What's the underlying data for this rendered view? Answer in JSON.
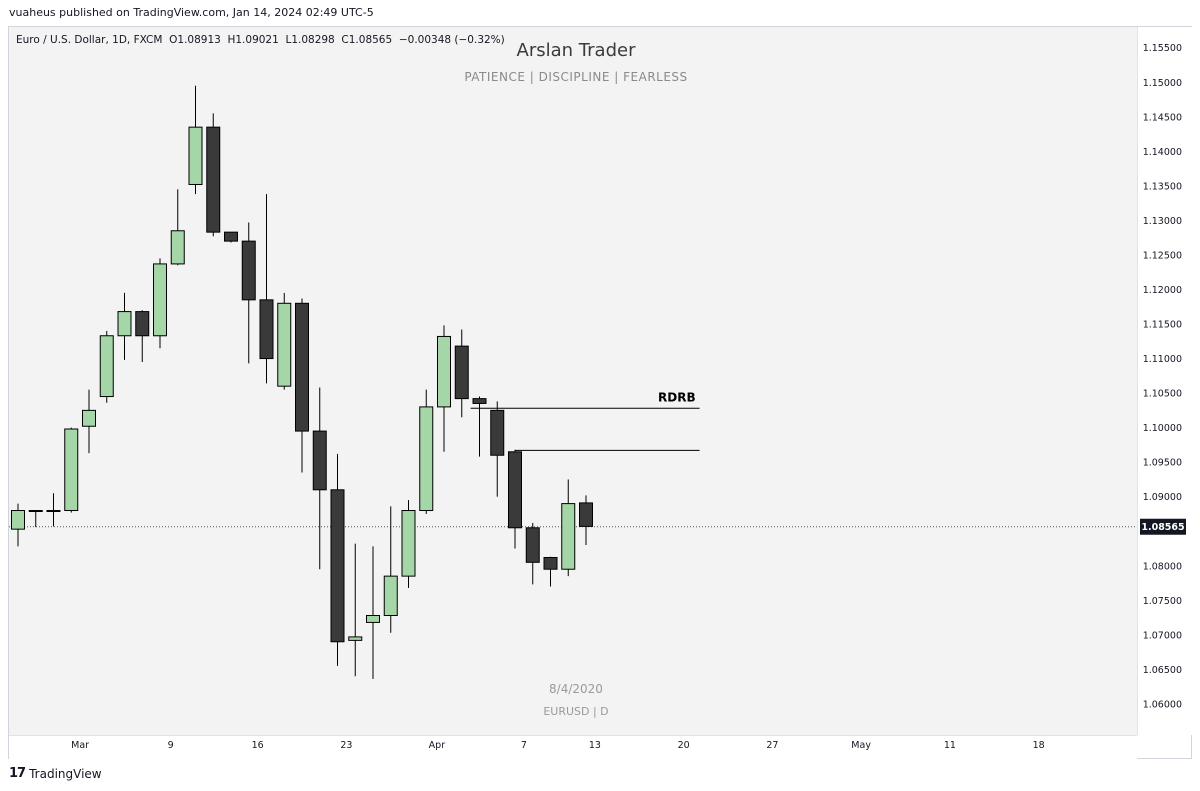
{
  "publisher_line": "vuaheus published on TradingView.com, Jan 14, 2024 02:49 UTC-5",
  "legend": "Euro / U.S. Dollar, 1D, FXCM  O1.08913  H1.09021  L1.08298  C1.08565  −0.00348 (−0.32%)",
  "watermark": {
    "title": "Arslan Trader",
    "subtitle": "PATIENCE   |   DISCIPLINE   |   FEARLESS",
    "date": "8/4/2020",
    "symbol": "EURUSD  |  D"
  },
  "footer": {
    "logo": "17",
    "brand": "TradingView"
  },
  "colors": {
    "up": "#a5d6a7",
    "down": "#3a3a3a",
    "wick": "#000000",
    "line": "#000000",
    "price_line": "#555555"
  },
  "chart_data": {
    "type": "candlestick",
    "symbol": "EURUSD",
    "interval": "1D",
    "ylim": [
      1.0555,
      1.158
    ],
    "y_ticks": [
      "1.15500",
      "1.15000",
      "1.14500",
      "1.14000",
      "1.13500",
      "1.13000",
      "1.12500",
      "1.12000",
      "1.11500",
      "1.11000",
      "1.10500",
      "1.10000",
      "1.09500",
      "1.09000",
      "1.08500",
      "1.08000",
      "1.07500",
      "1.07000",
      "1.06500",
      "1.06000"
    ],
    "x_ticks": [
      {
        "label": "Mar",
        "index": 3.5
      },
      {
        "label": "9",
        "index": 8.6
      },
      {
        "label": "16",
        "index": 13.5
      },
      {
        "label": "23",
        "index": 18.5
      },
      {
        "label": "Apr",
        "index": 23.6
      },
      {
        "label": "7",
        "index": 28.5
      },
      {
        "label": "13",
        "index": 32.5
      },
      {
        "label": "20",
        "index": 37.5
      },
      {
        "label": "27",
        "index": 42.5
      },
      {
        "label": "May",
        "index": 47.5
      },
      {
        "label": "11",
        "index": 52.5
      },
      {
        "label": "18",
        "index": 57.5
      }
    ],
    "candles": [
      {
        "o": 1.0853,
        "h": 1.089,
        "l": 1.0828,
        "c": 1.088
      },
      {
        "o": 1.088,
        "h": 1.0878,
        "l": 1.0856,
        "c": 1.088
      },
      {
        "o": 1.088,
        "h": 1.0905,
        "l": 1.0857,
        "c": 1.088
      },
      {
        "o": 1.088,
        "h": 1.1,
        "l": 1.0877,
        "c": 1.0998
      },
      {
        "o": 1.1002,
        "h": 1.1055,
        "l": 1.0963,
        "c": 1.1025
      },
      {
        "o": 1.1045,
        "h": 1.114,
        "l": 1.1036,
        "c": 1.1133
      },
      {
        "o": 1.1133,
        "h": 1.1195,
        "l": 1.1098,
        "c": 1.1168
      },
      {
        "o": 1.1168,
        "h": 1.117,
        "l": 1.1095,
        "c": 1.1133
      },
      {
        "o": 1.1133,
        "h": 1.1245,
        "l": 1.1115,
        "c": 1.1237
      },
      {
        "o": 1.1237,
        "h": 1.1345,
        "l": 1.1235,
        "c": 1.1285
      },
      {
        "o": 1.1352,
        "h": 1.1495,
        "l": 1.1338,
        "c": 1.1435
      },
      {
        "o": 1.1435,
        "h": 1.1455,
        "l": 1.1277,
        "c": 1.1283
      },
      {
        "o": 1.1283,
        "h": 1.1282,
        "l": 1.1268,
        "c": 1.127
      },
      {
        "o": 1.127,
        "h": 1.1297,
        "l": 1.1093,
        "c": 1.1185
      },
      {
        "o": 1.1185,
        "h": 1.1338,
        "l": 1.1064,
        "c": 1.11
      },
      {
        "o": 1.106,
        "h": 1.1195,
        "l": 1.1055,
        "c": 1.118
      },
      {
        "o": 1.118,
        "h": 1.1187,
        "l": 1.0935,
        "c": 1.0995
      },
      {
        "o": 1.0995,
        "h": 1.1058,
        "l": 1.0795,
        "c": 1.091
      },
      {
        "o": 1.091,
        "h": 1.0962,
        "l": 1.0655,
        "c": 1.069
      },
      {
        "o": 1.0692,
        "h": 1.0832,
        "l": 1.064,
        "c": 1.0697
      },
      {
        "o": 1.0718,
        "h": 1.0828,
        "l": 1.0636,
        "c": 1.0728
      },
      {
        "o": 1.0728,
        "h": 1.0886,
        "l": 1.0703,
        "c": 1.0785
      },
      {
        "o": 1.0785,
        "h": 1.0895,
        "l": 1.0768,
        "c": 1.088
      },
      {
        "o": 1.088,
        "h": 1.1055,
        "l": 1.0875,
        "c": 1.103
      },
      {
        "o": 1.103,
        "h": 1.1148,
        "l": 1.0965,
        "c": 1.1132
      },
      {
        "o": 1.1118,
        "h": 1.1142,
        "l": 1.1015,
        "c": 1.1042
      },
      {
        "o": 1.1042,
        "h": 1.1045,
        "l": 1.0958,
        "c": 1.1035
      },
      {
        "o": 1.1025,
        "h": 1.1038,
        "l": 1.09,
        "c": 1.096
      },
      {
        "o": 1.0965,
        "h": 1.0968,
        "l": 1.0825,
        "c": 1.0855
      },
      {
        "o": 1.0855,
        "h": 1.0862,
        "l": 1.0773,
        "c": 1.0805
      },
      {
        "o": 1.0812,
        "h": 1.0813,
        "l": 1.077,
        "c": 1.0795
      },
      {
        "o": 1.0795,
        "h": 1.0925,
        "l": 1.0785,
        "c": 1.089
      },
      {
        "o": 1.0891,
        "h": 1.0902,
        "l": 1.083,
        "c": 1.0857
      }
    ],
    "lines": [
      {
        "label": "RDRB",
        "price": 1.1028,
        "from_index": 25.5,
        "to_index": 38.4
      },
      {
        "label": "",
        "price": 1.0967,
        "from_index": 28.0,
        "to_index": 38.4
      }
    ],
    "last_price": 1.08565,
    "last_price_label": "1.08565"
  }
}
